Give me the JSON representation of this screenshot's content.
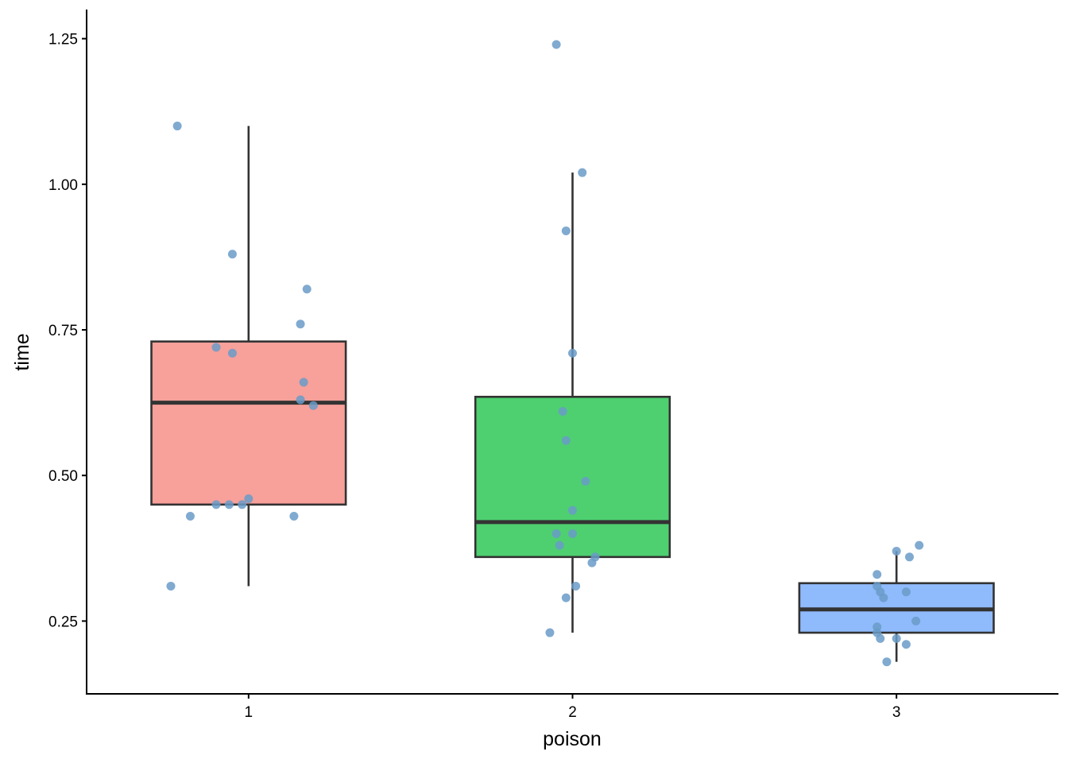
{
  "chart_data": {
    "type": "box",
    "xlabel": "poison",
    "ylabel": "time",
    "ylim": [
      0.125,
      1.3
    ],
    "yticks": [
      0.25,
      0.5,
      0.75,
      1.0,
      1.25
    ],
    "ytick_labels": [
      "0.25",
      "0.50",
      "0.75",
      "1.00",
      "1.25"
    ],
    "categories": [
      "1",
      "2",
      "3"
    ],
    "point_color": "#6A9BC8",
    "boxes": [
      {
        "category": "1",
        "fill": "#F8A09A",
        "q1": 0.45,
        "median": 0.625,
        "q3": 0.73,
        "whisker_low": 0.31,
        "whisker_high": 1.1
      },
      {
        "category": "2",
        "fill": "#4ED070",
        "q1": 0.36,
        "median": 0.42,
        "q3": 0.635,
        "whisker_low": 0.23,
        "whisker_high": 1.02
      },
      {
        "category": "3",
        "fill": "#8FBAFB",
        "q1": 0.23,
        "median": 0.27,
        "q3": 0.315,
        "whisker_low": 0.18,
        "whisker_high": 0.37
      }
    ],
    "points": [
      {
        "category": "1",
        "jitter": -0.22,
        "y": 1.1
      },
      {
        "category": "1",
        "jitter": -0.05,
        "y": 0.88
      },
      {
        "category": "1",
        "jitter": 0.18,
        "y": 0.82
      },
      {
        "category": "1",
        "jitter": 0.16,
        "y": 0.76
      },
      {
        "category": "1",
        "jitter": -0.1,
        "y": 0.72
      },
      {
        "category": "1",
        "jitter": -0.05,
        "y": 0.71
      },
      {
        "category": "1",
        "jitter": 0.17,
        "y": 0.66
      },
      {
        "category": "1",
        "jitter": 0.16,
        "y": 0.63
      },
      {
        "category": "1",
        "jitter": 0.2,
        "y": 0.62
      },
      {
        "category": "1",
        "jitter": 0.0,
        "y": 0.46
      },
      {
        "category": "1",
        "jitter": -0.02,
        "y": 0.45
      },
      {
        "category": "1",
        "jitter": -0.06,
        "y": 0.45
      },
      {
        "category": "1",
        "jitter": -0.1,
        "y": 0.45
      },
      {
        "category": "1",
        "jitter": -0.18,
        "y": 0.43
      },
      {
        "category": "1",
        "jitter": 0.14,
        "y": 0.43
      },
      {
        "category": "1",
        "jitter": -0.24,
        "y": 0.31
      },
      {
        "category": "2",
        "jitter": -0.05,
        "y": 1.24
      },
      {
        "category": "2",
        "jitter": 0.03,
        "y": 1.02
      },
      {
        "category": "2",
        "jitter": -0.02,
        "y": 0.92
      },
      {
        "category": "2",
        "jitter": 0.0,
        "y": 0.71
      },
      {
        "category": "2",
        "jitter": -0.03,
        "y": 0.61
      },
      {
        "category": "2",
        "jitter": -0.02,
        "y": 0.56
      },
      {
        "category": "2",
        "jitter": 0.04,
        "y": 0.49
      },
      {
        "category": "2",
        "jitter": 0.0,
        "y": 0.44
      },
      {
        "category": "2",
        "jitter": 0.0,
        "y": 0.4
      },
      {
        "category": "2",
        "jitter": -0.05,
        "y": 0.4
      },
      {
        "category": "2",
        "jitter": -0.04,
        "y": 0.38
      },
      {
        "category": "2",
        "jitter": 0.07,
        "y": 0.36
      },
      {
        "category": "2",
        "jitter": 0.06,
        "y": 0.35
      },
      {
        "category": "2",
        "jitter": 0.01,
        "y": 0.31
      },
      {
        "category": "2",
        "jitter": -0.02,
        "y": 0.29
      },
      {
        "category": "2",
        "jitter": -0.07,
        "y": 0.23
      },
      {
        "category": "3",
        "jitter": 0.07,
        "y": 0.38
      },
      {
        "category": "3",
        "jitter": 0.0,
        "y": 0.37
      },
      {
        "category": "3",
        "jitter": 0.04,
        "y": 0.36
      },
      {
        "category": "3",
        "jitter": -0.06,
        "y": 0.33
      },
      {
        "category": "3",
        "jitter": -0.06,
        "y": 0.31
      },
      {
        "category": "3",
        "jitter": -0.05,
        "y": 0.3
      },
      {
        "category": "3",
        "jitter": 0.03,
        "y": 0.3
      },
      {
        "category": "3",
        "jitter": -0.04,
        "y": 0.29
      },
      {
        "category": "3",
        "jitter": 0.06,
        "y": 0.25
      },
      {
        "category": "3",
        "jitter": -0.06,
        "y": 0.24
      },
      {
        "category": "3",
        "jitter": -0.06,
        "y": 0.23
      },
      {
        "category": "3",
        "jitter": -0.05,
        "y": 0.22
      },
      {
        "category": "3",
        "jitter": 0.0,
        "y": 0.22
      },
      {
        "category": "3",
        "jitter": 0.03,
        "y": 0.21
      },
      {
        "category": "3",
        "jitter": -0.03,
        "y": 0.18
      }
    ]
  }
}
